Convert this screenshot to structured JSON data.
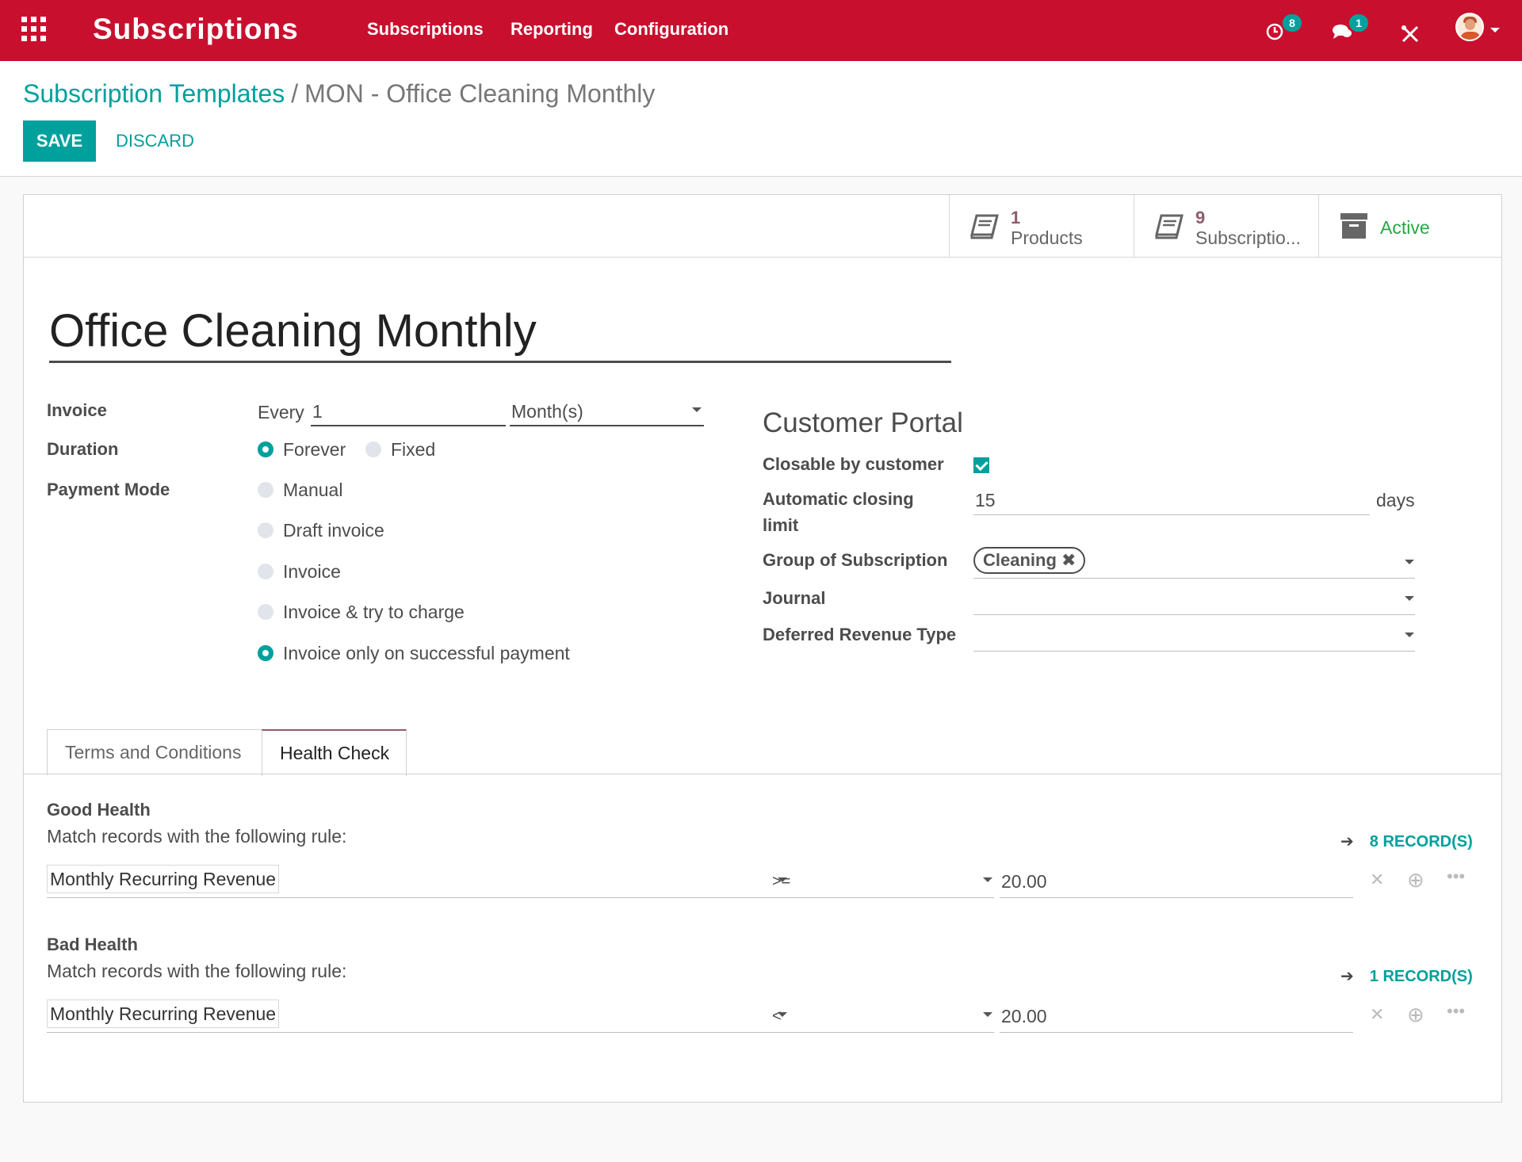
{
  "navbar": {
    "app_title": "Subscriptions",
    "menu": [
      "Subscriptions",
      "Reporting",
      "Configuration"
    ],
    "activity_badge": "8",
    "messages_badge": "1",
    "icons": [
      "apps-grid-icon",
      "clock-icon",
      "chat-icon",
      "tools-icon",
      "user-avatar"
    ]
  },
  "breadcrumb": {
    "parent": "Subscription Templates",
    "separator": "/",
    "current": "MON - Office Cleaning Monthly"
  },
  "actions": {
    "save": "SAVE",
    "discard": "DISCARD"
  },
  "stat_buttons": {
    "products": {
      "count": "1",
      "label": "Products"
    },
    "subscriptions": {
      "count": "9",
      "label": "Subscriptio..."
    },
    "archive": {
      "label": "Active"
    }
  },
  "form": {
    "name": "Office Cleaning Monthly",
    "invoice": {
      "label": "Invoice",
      "prefix": "Every",
      "interval": "1",
      "unit": "Month(s)"
    },
    "duration": {
      "label": "Duration",
      "options": [
        "Forever",
        "Fixed"
      ],
      "selected": "Forever"
    },
    "payment_mode": {
      "label": "Payment Mode",
      "options": [
        "Manual",
        "Draft invoice",
        "Invoice",
        "Invoice & try to charge",
        "Invoice only on successful payment"
      ],
      "selected": "Invoice only on successful payment"
    },
    "customer_portal": {
      "title": "Customer Portal",
      "closable_label": "Closable by customer",
      "closable": true,
      "auto_close_label_1": "Automatic closing",
      "auto_close_label_2": "limit",
      "auto_close_value": "15",
      "auto_close_unit": "days",
      "group_label": "Group of Subscription",
      "group_tag": "Cleaning",
      "journal_label": "Journal",
      "deferred_label": "Deferred Revenue Type"
    }
  },
  "tabs": {
    "terms": "Terms and Conditions",
    "health": "Health Check",
    "active": "Health Check"
  },
  "health": {
    "good": {
      "title": "Good Health",
      "rule_text": "Match records with the following rule:",
      "records": "8 RECORD(S)",
      "field": "Monthly Recurring Revenue",
      "operator": ">=",
      "value": "20.00"
    },
    "bad": {
      "title": "Bad Health",
      "rule_text": "Match records with the following rule:",
      "records": "1 RECORD(S)",
      "field": "Monthly Recurring Revenue",
      "operator": "<",
      "value": "20.00"
    }
  },
  "colors": {
    "brand": "#c8102e",
    "accent": "#00a09d",
    "active_green": "#28a745",
    "stat_number": "#8f5a6e"
  }
}
